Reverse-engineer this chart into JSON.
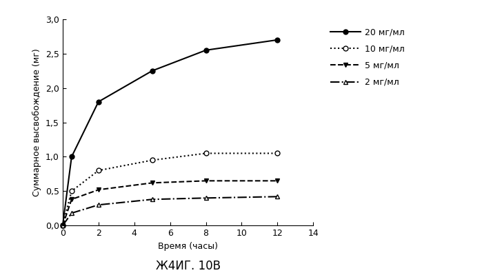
{
  "title": "Ж4ИГ. 10В",
  "xlabel": "Время (часы)",
  "ylabel": "Суммарное высвобождение (мг)",
  "xlim": [
    0,
    14
  ],
  "ylim": [
    0.0,
    3.0
  ],
  "xticks": [
    0,
    2,
    4,
    6,
    8,
    10,
    12,
    14
  ],
  "yticks": [
    0.0,
    0.5,
    1.0,
    1.5,
    2.0,
    2.5,
    3.0
  ],
  "ytick_labels": [
    "0,0",
    "0,5",
    "1,0",
    "1,5",
    "2,0",
    "2,5",
    "3,0"
  ],
  "series": [
    {
      "label": "20 мг/мл",
      "x": [
        0,
        0.5,
        2,
        5,
        8,
        12
      ],
      "y": [
        0.0,
        1.0,
        1.8,
        2.25,
        2.55,
        2.7
      ],
      "linestyle": "-",
      "marker": "o",
      "markerfacecolor": "#000000",
      "color": "#000000",
      "linewidth": 1.5,
      "markersize": 5
    },
    {
      "label": "10 мг/мл",
      "x": [
        0,
        0.5,
        2,
        5,
        8,
        12
      ],
      "y": [
        0.0,
        0.5,
        0.8,
        0.95,
        1.05,
        1.05
      ],
      "linestyle": ":",
      "marker": "o",
      "markerfacecolor": "#ffffff",
      "color": "#000000",
      "linewidth": 1.5,
      "markersize": 5
    },
    {
      "label": "5 мг/мл",
      "x": [
        0,
        0.5,
        2,
        5,
        8,
        12
      ],
      "y": [
        0.0,
        0.38,
        0.52,
        0.62,
        0.65,
        0.65
      ],
      "linestyle": "--",
      "marker": "v",
      "markerfacecolor": "#000000",
      "color": "#000000",
      "linewidth": 1.5,
      "markersize": 5
    },
    {
      "label": "2 мг/мл",
      "x": [
        0,
        0.5,
        2,
        5,
        8,
        12
      ],
      "y": [
        0.0,
        0.18,
        0.3,
        0.38,
        0.4,
        0.42
      ],
      "linestyle": "-.",
      "marker": "^",
      "markerfacecolor": "#ffffff",
      "color": "#000000",
      "linewidth": 1.5,
      "markersize": 5
    }
  ],
  "background_color": "#ffffff",
  "title_fontsize": 12,
  "label_fontsize": 9,
  "tick_fontsize": 9,
  "legend_fontsize": 9
}
